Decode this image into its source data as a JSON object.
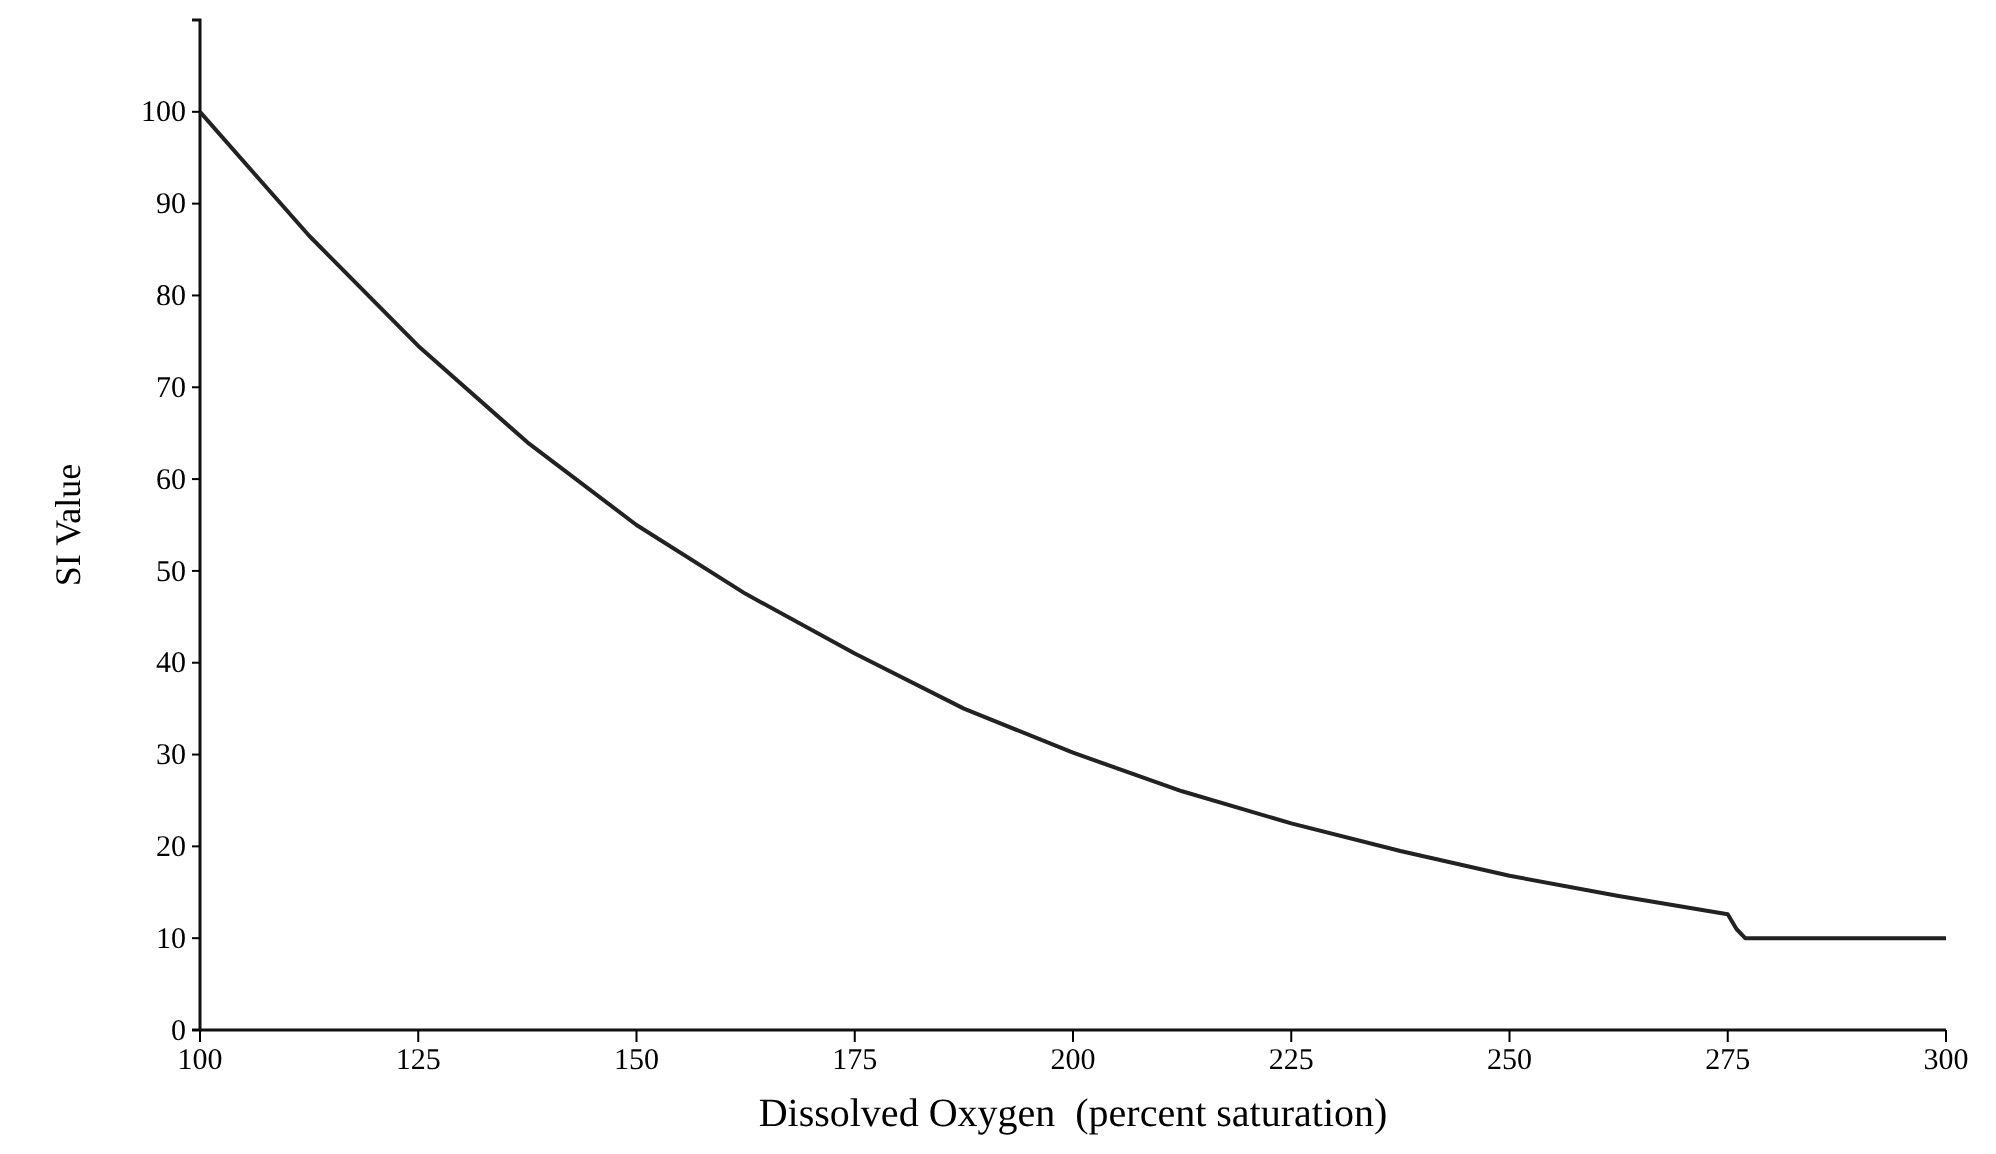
{
  "chart_data": {
    "type": "line",
    "xlabel": "Dissolved Oxygen  (percent saturation)",
    "ylabel": "SI Value",
    "series": [
      {
        "color": "#222222",
        "x": [
          100,
          112.5,
          125,
          137.5,
          150,
          162.5,
          175,
          187.5,
          200,
          212.5,
          225,
          237.5,
          250,
          262.5,
          275,
          276,
          277,
          300
        ],
        "values": [
          100,
          86.5,
          74.5,
          64,
          55,
          47.5,
          41,
          35,
          30.2,
          26,
          22.5,
          19.5,
          16.8,
          14.6,
          12.6,
          11,
          10,
          10
        ]
      }
    ],
    "xlim": [
      100,
      300
    ],
    "xticks": [
      100,
      125,
      150,
      175,
      200,
      225,
      250,
      275,
      300
    ],
    "ylim": [
      0,
      110
    ],
    "yticks": [
      0,
      10,
      20,
      30,
      40,
      50,
      60,
      70,
      80,
      90,
      100
    ],
    "line_style": "solid"
  }
}
